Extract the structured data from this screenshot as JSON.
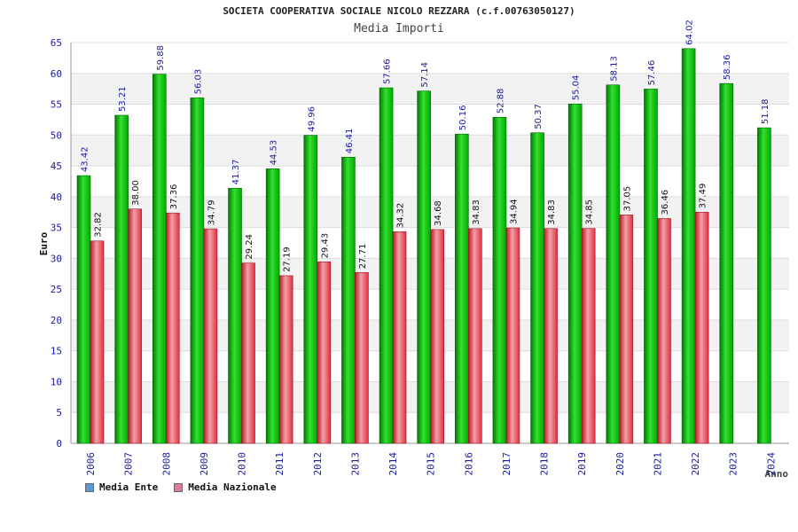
{
  "chart_data": {
    "type": "bar",
    "title": "SOCIETA COOPERATIVA SOCIALE NICOLO REZZARA (c.f.00763050127)",
    "subtitle": "Media Importi",
    "xlabel": "Anno",
    "ylabel": "Euro",
    "ylim": [
      0,
      65
    ],
    "yticks": [
      0,
      5,
      10,
      15,
      20,
      25,
      30,
      35,
      40,
      45,
      50,
      55,
      60,
      65
    ],
    "categories": [
      "2006",
      "2007",
      "2008",
      "2009",
      "2010",
      "2011",
      "2012",
      "2013",
      "2014",
      "2015",
      "2016",
      "2017",
      "2018",
      "2019",
      "2020",
      "2021",
      "2022",
      "2023",
      "2024"
    ],
    "series": [
      {
        "name": "Media Ente",
        "color": "#00b000",
        "legend_color": "#5b9bd5",
        "values": [
          43.42,
          53.21,
          59.88,
          56.03,
          41.37,
          44.53,
          49.96,
          46.41,
          57.66,
          57.14,
          50.16,
          52.88,
          50.37,
          55.04,
          58.13,
          57.46,
          64.02,
          58.36,
          51.18
        ],
        "labels": [
          "43.42",
          "53.21",
          "59.88",
          "56.03",
          "41.37",
          "44.53",
          "49.96",
          "46.41",
          "57.66",
          "57.14",
          "50.16",
          "52.88",
          "50.37",
          "55.04",
          "58.13",
          "57.46",
          "64.02",
          "58.36",
          "51.18"
        ]
      },
      {
        "name": "Media Nazionale",
        "color": "#e03040",
        "legend_color": "#e07aa0",
        "values": [
          32.82,
          38.0,
          37.36,
          34.79,
          29.24,
          27.19,
          29.43,
          27.71,
          34.32,
          34.68,
          34.83,
          34.94,
          34.83,
          34.85,
          37.05,
          36.46,
          37.49,
          null,
          null
        ],
        "labels": [
          "32.82",
          "38.00",
          "37.36",
          "34.79",
          "29.24",
          "27.19",
          "29.43",
          "27.71",
          "34.32",
          "34.68",
          "34.83",
          "34.94",
          "34.83",
          "34.85",
          "37.05",
          "36.46",
          "37.49",
          null,
          null
        ]
      }
    ],
    "legend_position": "bottom-left",
    "grid": true
  }
}
